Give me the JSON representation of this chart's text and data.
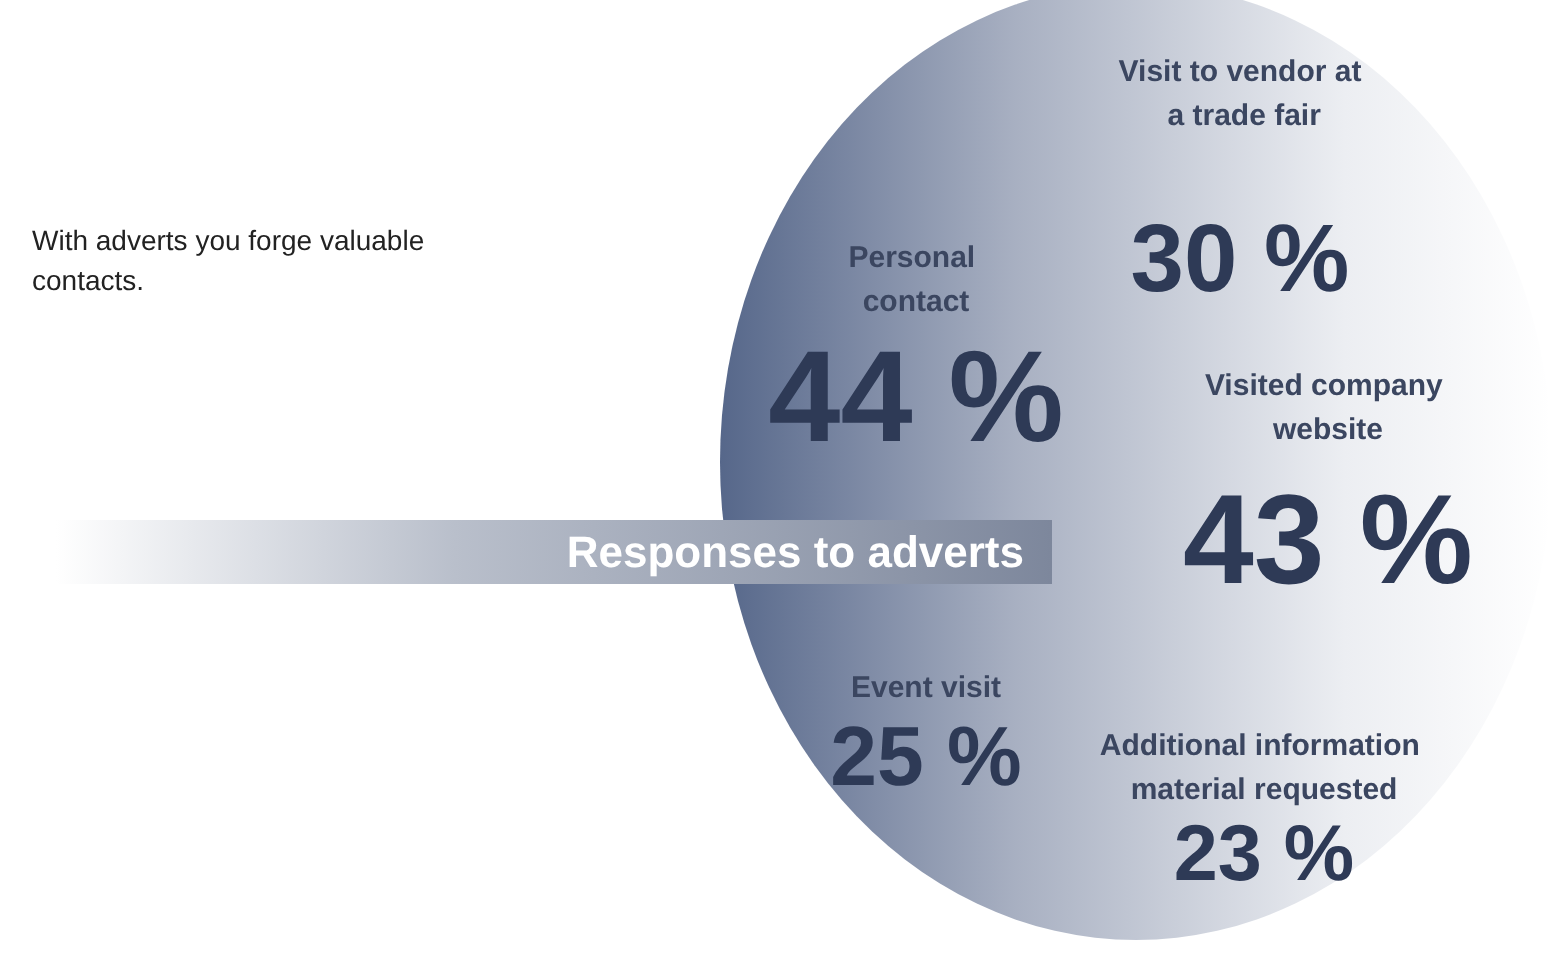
{
  "chart_data": {
    "type": "other",
    "title": "Responses to adverts",
    "annotations": [
      "With adverts you forge valuable contacts."
    ],
    "categories": [
      "Personal contact",
      "Visit to vendor at a trade fair",
      "Visited company website",
      "Event visit",
      "Additional information material requested"
    ],
    "values": [
      44,
      30,
      43,
      25,
      23
    ],
    "value_labels": [
      "44 %",
      "30 %",
      "43 %",
      "25 %",
      "23 %"
    ],
    "color": "#56678a"
  }
}
